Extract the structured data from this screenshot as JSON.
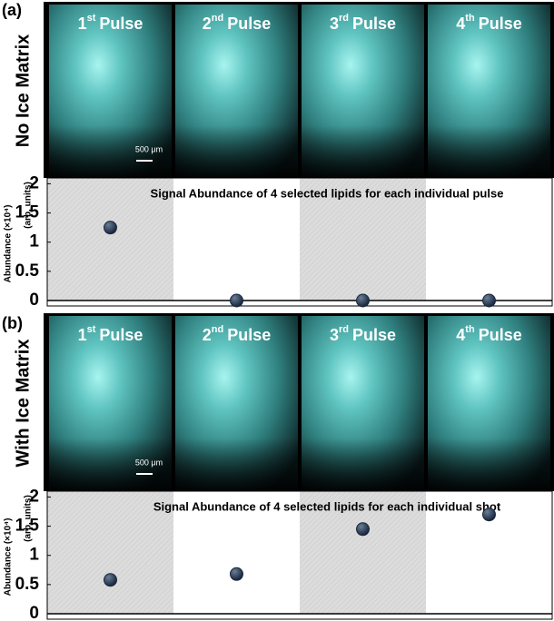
{
  "panels": [
    {
      "label": "(a)",
      "side_label": "No Ice Matrix",
      "images": [
        {
          "number": "1",
          "suffix": "st",
          "word": "Pulse"
        },
        {
          "number": "2",
          "suffix": "nd",
          "word": "Pulse"
        },
        {
          "number": "3",
          "suffix": "rd",
          "word": "Pulse"
        },
        {
          "number": "4",
          "suffix": "th",
          "word": "Pulse"
        }
      ],
      "scale_bar": "500 μm"
    },
    {
      "label": "(b)",
      "side_label": "With Ice Matrix",
      "images": [
        {
          "number": "1",
          "suffix": "st",
          "word": "Pulse"
        },
        {
          "number": "2",
          "suffix": "nd",
          "word": "Pulse"
        },
        {
          "number": "3",
          "suffix": "rd",
          "word": "Pulse"
        },
        {
          "number": "4",
          "suffix": "th",
          "word": "Pulse"
        }
      ],
      "scale_bar": "500 μm"
    }
  ],
  "chart_data": [
    {
      "type": "scatter",
      "title": "Signal Abundance of 4 selected lipids for each individual pulse",
      "ylabel": "Abundance (×10⁴)",
      "ylabel_units": "(arb. units)",
      "categories": [
        null,
        null,
        null,
        null
      ],
      "values": [
        1.25,
        0,
        0,
        0
      ],
      "color": "#1c2a3c",
      "ylim": [
        0,
        2.1
      ],
      "yticks": [
        0,
        0.5,
        1,
        1.5,
        2
      ]
    },
    {
      "type": "scatter",
      "title": "Signal Abundance of 4 selected lipids for each individual shot",
      "ylabel": "Abundance (×10⁴)",
      "ylabel_units": "(arb. units)",
      "categories": [
        null,
        null,
        null,
        null
      ],
      "values": [
        0.58,
        0.68,
        1.45,
        1.7
      ],
      "color": "#1c2a3c",
      "ylim": [
        0,
        2.1
      ],
      "yticks": [
        0,
        0.5,
        1,
        1.5,
        2
      ]
    }
  ]
}
